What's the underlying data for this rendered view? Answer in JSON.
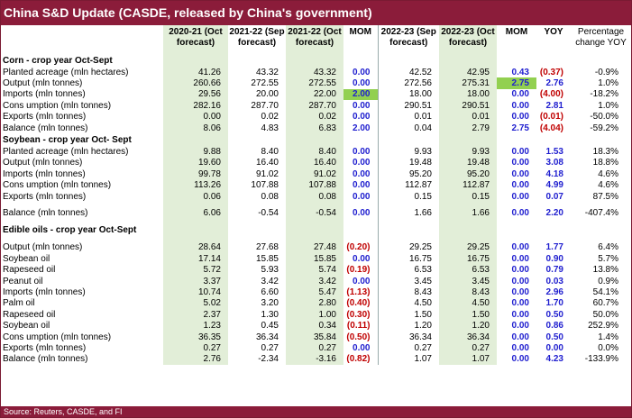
{
  "title": "China S&D Update (CASDE, released by China's government)",
  "source": "Source: Reuters, CASDE, and FI",
  "headers": {
    "c1": [
      "2020-21 (Oct",
      "forecast)"
    ],
    "c2": [
      "2021-22 (Sep",
      "forecast)"
    ],
    "c3": [
      "2021-22 (Oct",
      "forecast)"
    ],
    "c4": [
      "MOM",
      ""
    ],
    "c5": [
      "2022-23 (Sep",
      "forecast)"
    ],
    "c6": [
      "2022-23 (Oct",
      "forecast)"
    ],
    "c7": [
      "MOM",
      ""
    ],
    "c8": [
      "YOY",
      ""
    ],
    "c9": [
      "Percentage",
      "change YOY"
    ]
  },
  "rows": [
    {
      "type": "section",
      "label": "Corn - crop year Oct-Sept"
    },
    {
      "label": "Planted acreage (mln hectares)",
      "v": [
        "41.26",
        "43.32",
        "43.32",
        "0.00",
        "42.52",
        "42.95",
        "0.43",
        "(0.37)",
        "-0.9%"
      ],
      "red": [
        7
      ]
    },
    {
      "label": "Output (mln tonnes)",
      "v": [
        "260.66",
        "272.55",
        "272.55",
        "0.00",
        "272.56",
        "275.31",
        "2.75",
        "2.76",
        "1.0%"
      ],
      "hl": [
        6
      ]
    },
    {
      "label": "Imports (mln tonnes)",
      "v": [
        "29.56",
        "20.00",
        "22.00",
        "2.00",
        "18.00",
        "18.00",
        "0.00",
        "(4.00)",
        "-18.2%"
      ],
      "hl": [
        3
      ],
      "red": [
        7
      ]
    },
    {
      "label": "Cons umption (mln tonnes)",
      "v": [
        "282.16",
        "287.70",
        "287.70",
        "0.00",
        "290.51",
        "290.51",
        "0.00",
        "2.81",
        "1.0%"
      ]
    },
    {
      "label": "Exports (mln tonnes)",
      "v": [
        "0.00",
        "0.02",
        "0.02",
        "0.00",
        "0.01",
        "0.01",
        "0.00",
        "(0.01)",
        "-50.0%"
      ],
      "red": [
        7
      ]
    },
    {
      "label": "Balance (mln tonnes)",
      "v": [
        "8.06",
        "4.83",
        "6.83",
        "2.00",
        "0.04",
        "2.79",
        "2.75",
        "(4.04)",
        "-59.2%"
      ],
      "red": [
        7
      ]
    },
    {
      "type": "section",
      "label": "Soybean - crop year Oct- Sept"
    },
    {
      "label": "Planted acreage (mln hectares)",
      "v": [
        "9.88",
        "8.40",
        "8.40",
        "0.00",
        "9.93",
        "9.93",
        "0.00",
        "1.53",
        "18.3%"
      ]
    },
    {
      "label": "Output (mln tonnes)",
      "v": [
        "19.60",
        "16.40",
        "16.40",
        "0.00",
        "19.48",
        "19.48",
        "0.00",
        "3.08",
        "18.8%"
      ]
    },
    {
      "label": "Imports (mln tonnes)",
      "v": [
        "99.78",
        "91.02",
        "91.02",
        "0.00",
        "95.20",
        "95.20",
        "0.00",
        "4.18",
        "4.6%"
      ]
    },
    {
      "label": "Cons umption (mln tonnes)",
      "v": [
        "113.26",
        "107.88",
        "107.88",
        "0.00",
        "112.87",
        "112.87",
        "0.00",
        "4.99",
        "4.6%"
      ]
    },
    {
      "label": "Exports (mln tonnes)",
      "v": [
        "0.06",
        "0.08",
        "0.08",
        "0.00",
        "0.15",
        "0.15",
        "0.00",
        "0.07",
        "87.5%"
      ]
    },
    {
      "type": "spacer"
    },
    {
      "label": "Balance (mln tonnes)",
      "v": [
        "6.06",
        "-0.54",
        "-0.54",
        "0.00",
        "1.66",
        "1.66",
        "0.00",
        "2.20",
        "-407.4%"
      ]
    },
    {
      "type": "spacer"
    },
    {
      "type": "section",
      "label": "Edible oils - crop year Oct-Sept"
    },
    {
      "type": "spacer"
    },
    {
      "label": "Output (mln tonnes)",
      "v": [
        "28.64",
        "27.68",
        "27.48",
        "(0.20)",
        "29.25",
        "29.25",
        "0.00",
        "1.77",
        "6.4%"
      ],
      "red": [
        3
      ]
    },
    {
      "label": "Soybean oil",
      "v": [
        "17.14",
        "15.85",
        "15.85",
        "0.00",
        "16.75",
        "16.75",
        "0.00",
        "0.90",
        "5.7%"
      ]
    },
    {
      "label": "Rapeseed oil",
      "v": [
        "5.72",
        "5.93",
        "5.74",
        "(0.19)",
        "6.53",
        "6.53",
        "0.00",
        "0.79",
        "13.8%"
      ],
      "red": [
        3
      ]
    },
    {
      "label": "Peanut oil",
      "v": [
        "3.37",
        "3.42",
        "3.42",
        "0.00",
        "3.45",
        "3.45",
        "0.00",
        "0.03",
        "0.9%"
      ]
    },
    {
      "label": "Imports (mln tonnes)",
      "v": [
        "10.74",
        "6.60",
        "5.47",
        "(1.13)",
        "8.43",
        "8.43",
        "0.00",
        "2.96",
        "54.1%"
      ],
      "red": [
        3
      ]
    },
    {
      "label": "Palm oil",
      "v": [
        "5.02",
        "3.20",
        "2.80",
        "(0.40)",
        "4.50",
        "4.50",
        "0.00",
        "1.70",
        "60.7%"
      ],
      "red": [
        3
      ]
    },
    {
      "label": "Rapeseed oil",
      "v": [
        "2.37",
        "1.30",
        "1.00",
        "(0.30)",
        "1.50",
        "1.50",
        "0.00",
        "0.50",
        "50.0%"
      ],
      "red": [
        3
      ]
    },
    {
      "label": "Soybean oil",
      "v": [
        "1.23",
        "0.45",
        "0.34",
        "(0.11)",
        "1.20",
        "1.20",
        "0.00",
        "0.86",
        "252.9%"
      ],
      "red": [
        3
      ]
    },
    {
      "label": "Cons umption (mln tonnes)",
      "v": [
        "36.35",
        "36.34",
        "35.84",
        "(0.50)",
        "36.34",
        "36.34",
        "0.00",
        "0.50",
        "1.4%"
      ],
      "red": [
        3
      ]
    },
    {
      "label": "Exports (mln tonnes)",
      "v": [
        "0.27",
        "0.27",
        "0.27",
        "0.00",
        "0.27",
        "0.27",
        "0.00",
        "0.00",
        "0.0%"
      ]
    },
    {
      "label": "Balance (mln tonnes)",
      "v": [
        "2.76",
        "-2.34",
        "-3.16",
        "(0.82)",
        "1.07",
        "1.07",
        "0.00",
        "4.23",
        "-133.9%"
      ],
      "red": [
        3
      ]
    }
  ],
  "colors": {
    "title_bg": "#8b1c3a",
    "green_band": "#e2eed8",
    "highlight": "#92d050",
    "positive": "#1f1ecf",
    "negative": "#c00000"
  }
}
